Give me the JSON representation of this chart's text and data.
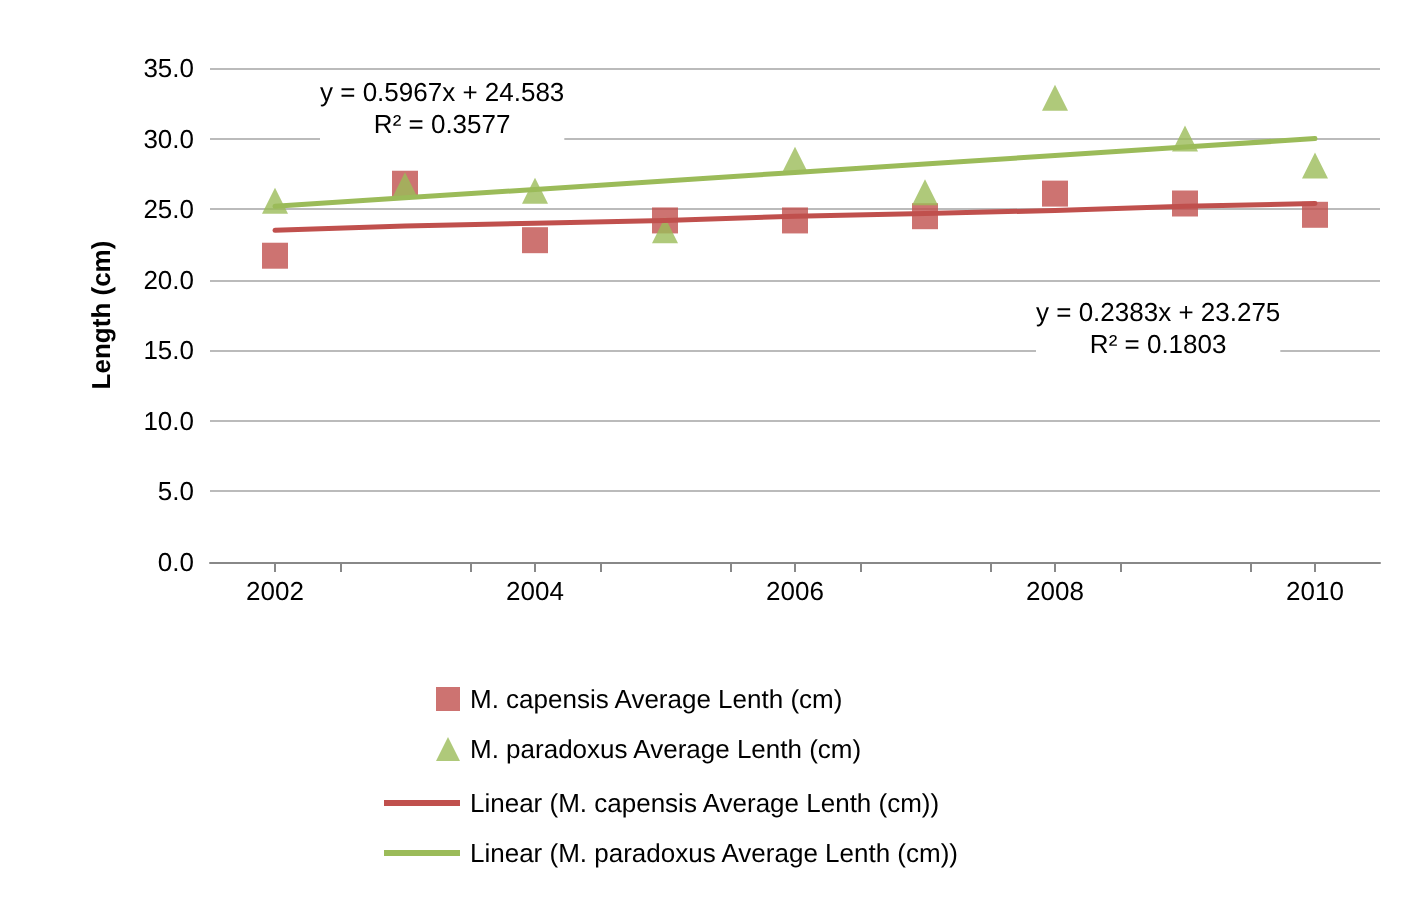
{
  "chart_data": {
    "type": "scatter",
    "ylabel": "Length (cm)",
    "x": [
      2002,
      2003,
      2004,
      2005,
      2006,
      2007,
      2008,
      2009,
      2010
    ],
    "xlim": [
      2001.5,
      2010.5
    ],
    "xticks": [
      {
        "value": 2002,
        "label": "2002"
      },
      {
        "value": 2002.5,
        "label": null
      },
      {
        "value": 2003.5,
        "label": null
      },
      {
        "value": 2004,
        "label": "2004"
      },
      {
        "value": 2004.5,
        "label": null
      },
      {
        "value": 2005.5,
        "label": null
      },
      {
        "value": 2006,
        "label": "2006"
      },
      {
        "value": 2006.5,
        "label": null
      },
      {
        "value": 2007.5,
        "label": null
      },
      {
        "value": 2008,
        "label": "2008"
      },
      {
        "value": 2008.5,
        "label": null
      },
      {
        "value": 2009.5,
        "label": null
      },
      {
        "value": 2010,
        "label": "2010"
      }
    ],
    "ylim": [
      0,
      35
    ],
    "yticks": [
      {
        "value": 0,
        "label": "0.0"
      },
      {
        "value": 5,
        "label": "5.0"
      },
      {
        "value": 10,
        "label": "10.0"
      },
      {
        "value": 15,
        "label": "15.0"
      },
      {
        "value": 20,
        "label": "20.0"
      },
      {
        "value": 25,
        "label": "25.0"
      },
      {
        "value": 30,
        "label": "30.0"
      },
      {
        "value": 35,
        "label": "35.0"
      }
    ],
    "grid": "y",
    "legend": "bottom",
    "series": [
      {
        "name": "M. capensis Average Lenth (cm)",
        "color": "#c0504d",
        "marker": "square",
        "values": [
          21.7,
          26.8,
          22.8,
          24.2,
          24.2,
          24.5,
          26.1,
          25.4,
          24.6
        ]
      },
      {
        "name": "M. paradoxus Average Lenth (cm)",
        "color": "#9bbb59",
        "marker": "triangle",
        "values": [
          25.6,
          26.7,
          26.3,
          23.5,
          28.5,
          26.2,
          32.9,
          30.0,
          28.1
        ]
      },
      {
        "name": "Linear (M. capensis Average Lenth (cm))",
        "type": "line",
        "color": "#c0504d",
        "marker": "none",
        "values": [
          23.5,
          23.8,
          24.0,
          24.2,
          24.5,
          24.7,
          24.9,
          25.2,
          25.4
        ]
      },
      {
        "name": "Linear (M. paradoxus Average Lenth (cm))",
        "type": "line",
        "color": "#9bbb59",
        "marker": "none",
        "values": [
          25.2,
          25.8,
          26.4,
          27.0,
          27.6,
          28.2,
          28.8,
          29.4,
          30.0
        ]
      }
    ],
    "annotations": [
      "y = 0.5967x + 24.583\nR² = 0.3577",
      "y = 0.2383x + 23.275\nR² = 0.1803"
    ]
  }
}
